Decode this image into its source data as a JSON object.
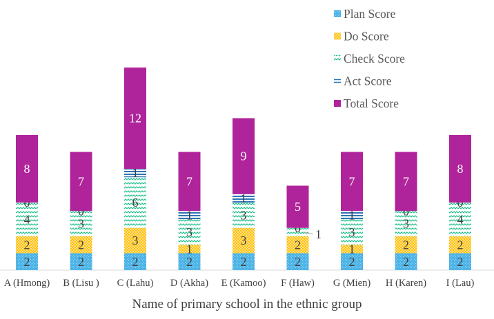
{
  "chart_data": {
    "type": "bar",
    "stacked": true,
    "title": "",
    "xlabel": "Name of primary school in the ethnic group",
    "ylabel": "",
    "categories": [
      "A (Hmong)",
      "B (Lisu )",
      "C (Lahu)",
      "D (Akha)",
      "E (Kamoo)",
      "F (Haw)",
      "G (Mien)",
      "H (Karen)",
      "I (Lau)"
    ],
    "series": [
      {
        "name": "Plan Score",
        "color": "#4db3e6",
        "values": [
          2,
          2,
          2,
          2,
          2,
          2,
          2,
          2,
          2
        ]
      },
      {
        "name": "Do Score",
        "color": "#ffc000",
        "values": [
          2,
          2,
          3,
          1,
          3,
          2,
          1,
          2,
          2
        ]
      },
      {
        "name": "Check Score",
        "color": "#21c28e",
        "values": [
          4,
          3,
          6,
          3,
          3,
          1,
          3,
          3,
          4
        ]
      },
      {
        "name": "Act Score",
        "color": "#2e75b6",
        "values": [
          0,
          0,
          1,
          1,
          1,
          0,
          1,
          0,
          0
        ]
      },
      {
        "name": "Total Score",
        "color": "#b0249b",
        "values": [
          8,
          7,
          12,
          7,
          9,
          5,
          7,
          7,
          8
        ]
      }
    ],
    "legend_position": "top-right",
    "grid": false
  }
}
